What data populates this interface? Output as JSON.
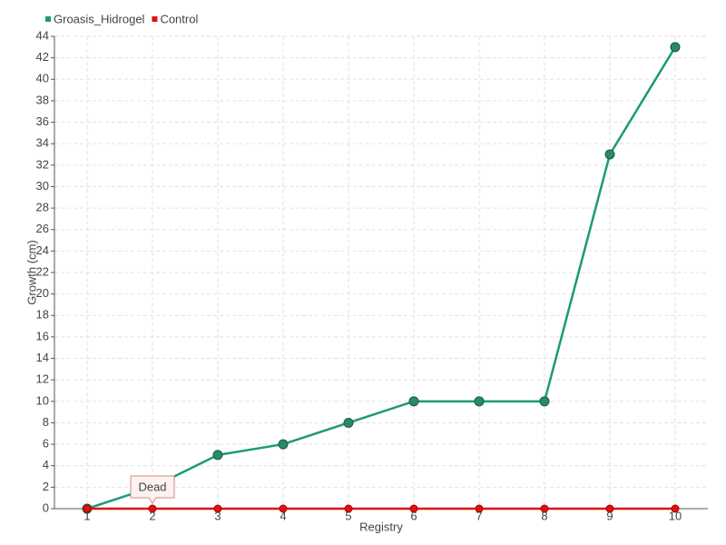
{
  "chart_data": {
    "type": "line",
    "x_label": "Registry",
    "y_label": "Growth (cm)",
    "x": [
      1,
      2,
      3,
      4,
      5,
      6,
      7,
      8,
      9,
      10
    ],
    "series": [
      {
        "name": "Groasis_Hidrogel",
        "color": "#1a9a7a",
        "values": [
          0,
          2,
          5,
          6,
          8,
          10,
          10,
          10,
          33,
          43
        ]
      },
      {
        "name": "Control",
        "color": "#e01010",
        "values": [
          0,
          0,
          0,
          0,
          0,
          0,
          0,
          0,
          0,
          0
        ]
      }
    ],
    "annotations": [
      {
        "text": "Dead",
        "x": 2,
        "y": 0
      }
    ],
    "xlim": [
      0.5,
      10.5
    ],
    "ylim": [
      0,
      44
    ],
    "xticks": [
      1,
      2,
      3,
      4,
      5,
      6,
      7,
      8,
      9,
      10
    ],
    "yticks": [
      0,
      2,
      4,
      6,
      8,
      10,
      12,
      14,
      16,
      18,
      20,
      22,
      24,
      26,
      28,
      30,
      32,
      34,
      36,
      38,
      40,
      42,
      44
    ],
    "grid": true,
    "legend": "top-left"
  }
}
